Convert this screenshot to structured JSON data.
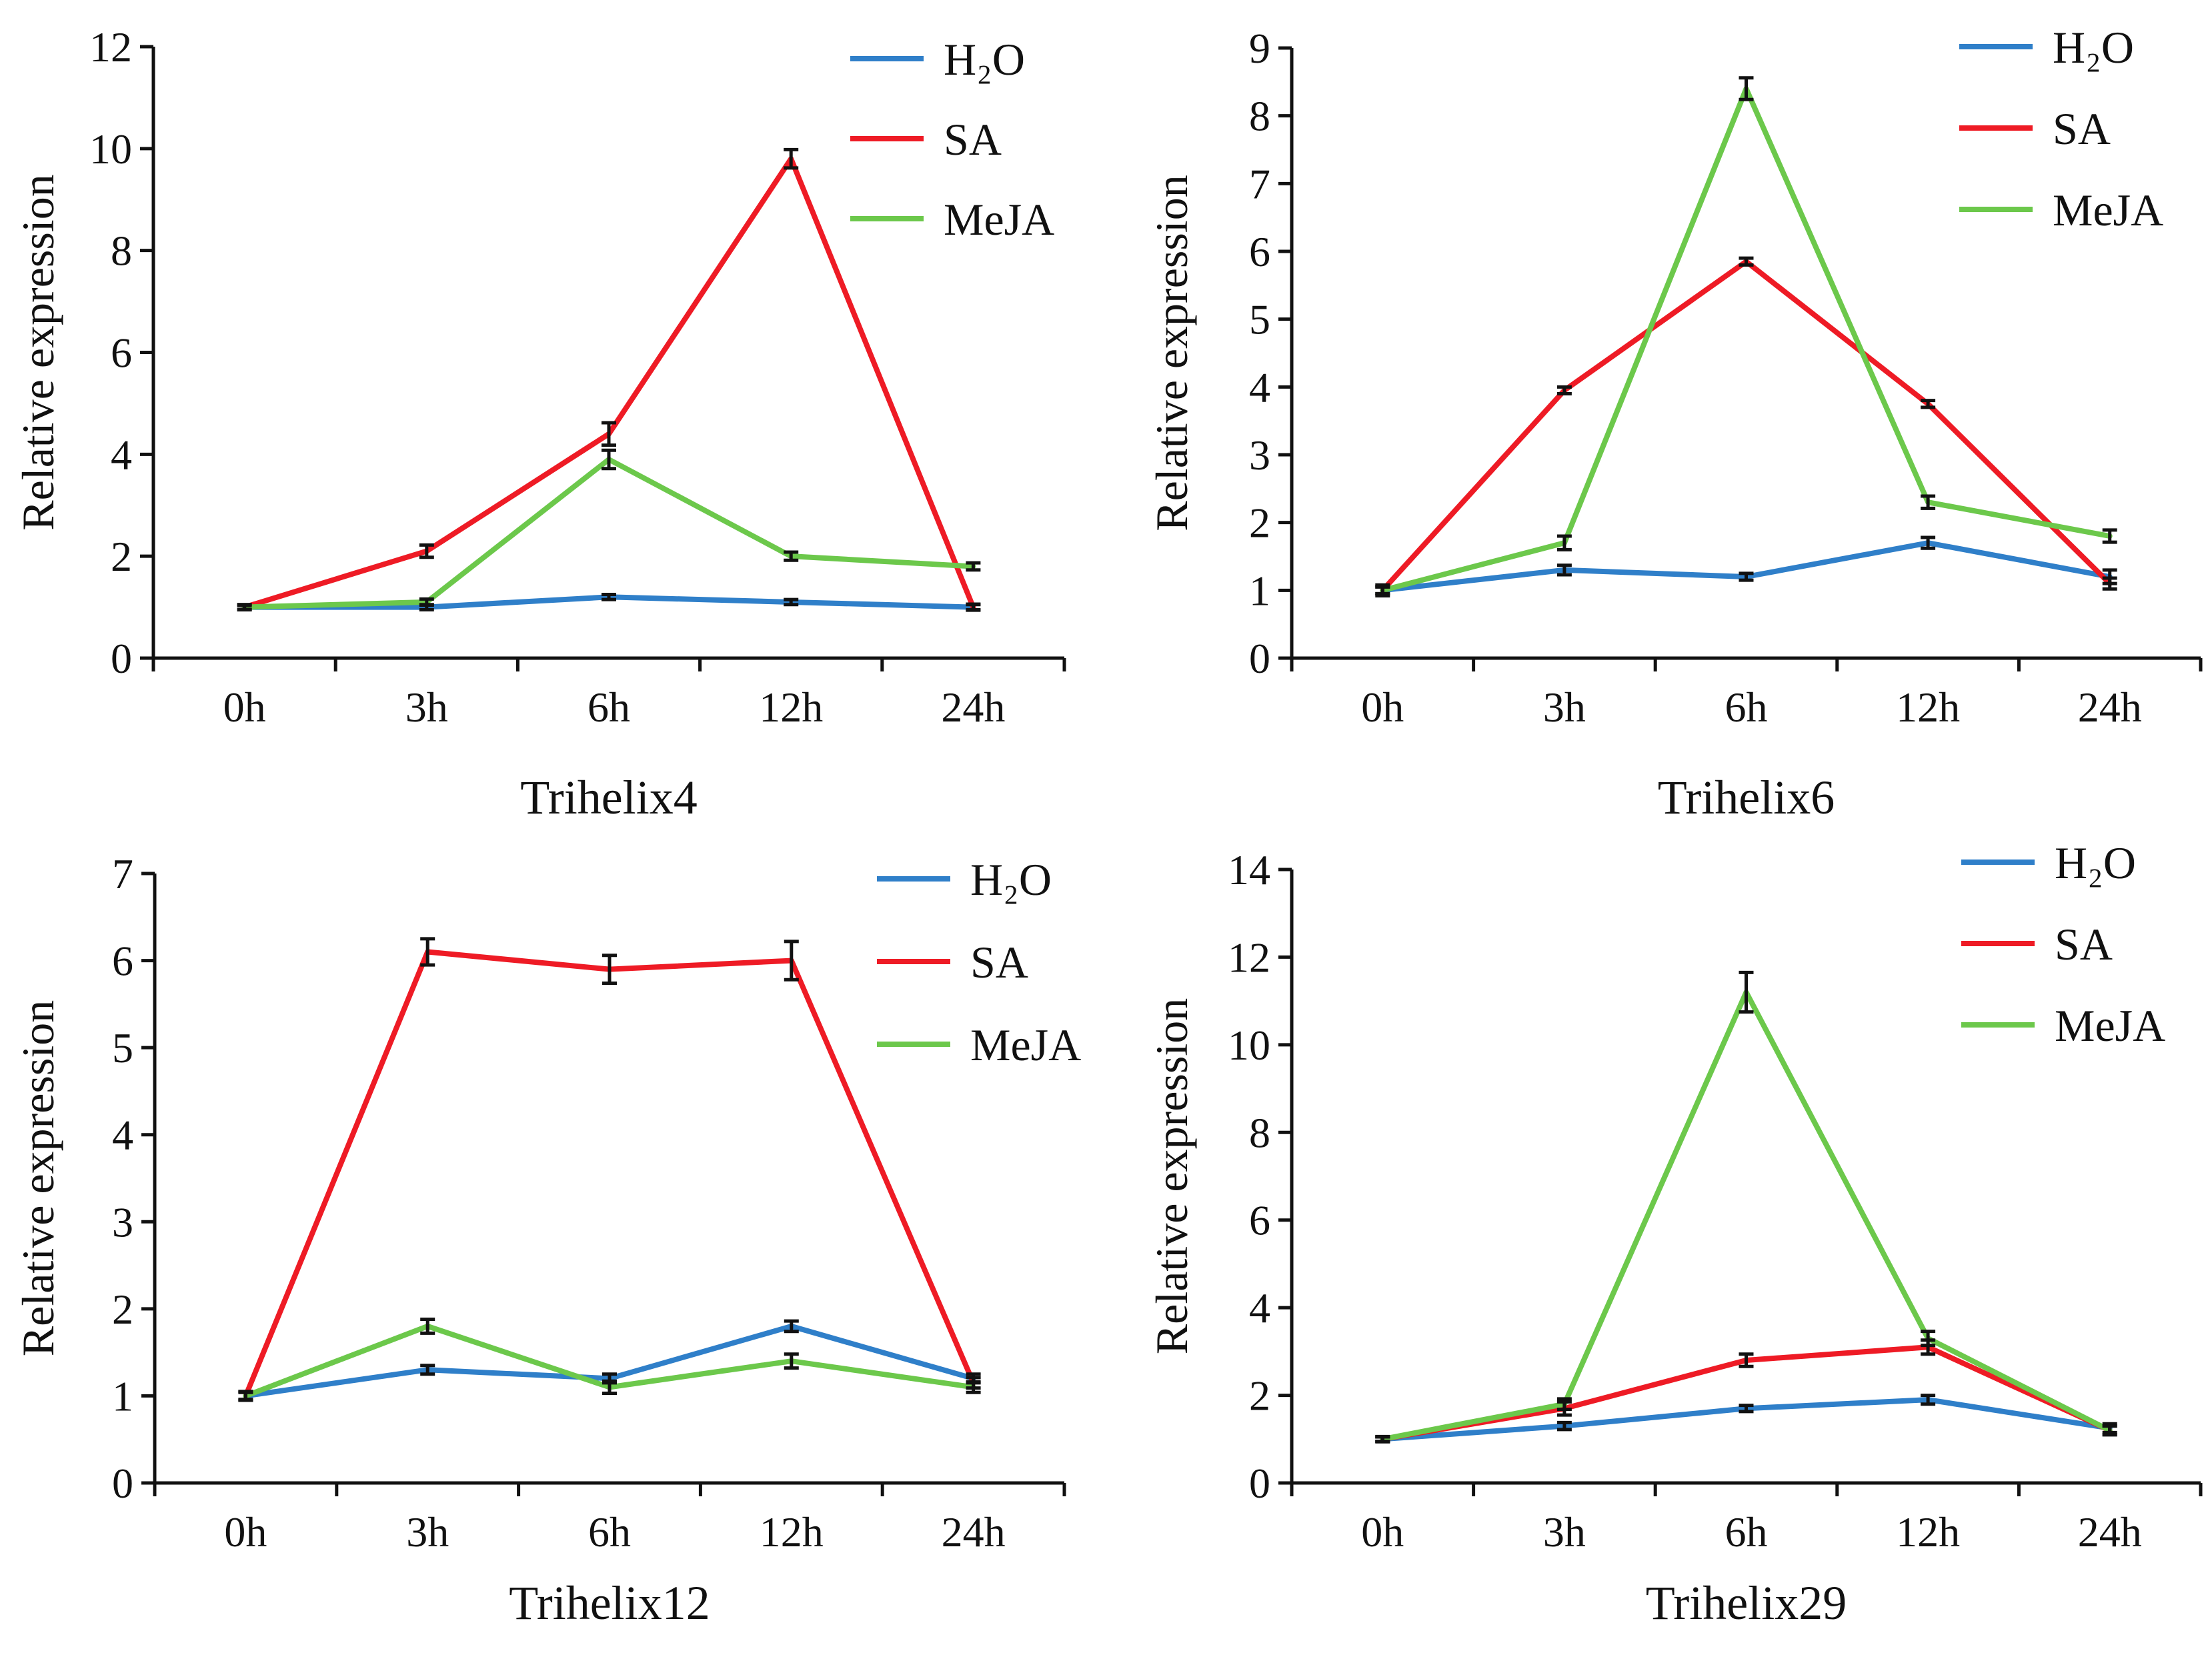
{
  "chart_data": [
    {
      "type": "line",
      "title": "Trihelix4",
      "xlabel": "Trihelix4",
      "ylabel": "Relative expression",
      "categories": [
        "0h",
        "3h",
        "6h",
        "12h",
        "24h"
      ],
      "ylim": [
        0,
        12
      ],
      "yticks": [
        0,
        2,
        4,
        6,
        8,
        10,
        12
      ],
      "legend_position": "top-right",
      "series": [
        {
          "name": "H2O",
          "label": "H₂O",
          "color": "#2f7fc9",
          "values": [
            1.0,
            1.0,
            1.2,
            1.1,
            1.0
          ],
          "errors": [
            0.04,
            0.05,
            0.05,
            0.05,
            0.06
          ]
        },
        {
          "name": "SA",
          "label": "SA",
          "color": "#ee1b25",
          "values": [
            1.0,
            2.1,
            4.4,
            9.8,
            1.0
          ],
          "errors": [
            0.05,
            0.12,
            0.22,
            0.18,
            0.05
          ]
        },
        {
          "name": "MeJA",
          "label": "MeJA",
          "color": "#6cc84b",
          "values": [
            1.0,
            1.1,
            3.9,
            2.0,
            1.8
          ],
          "errors": [
            0.05,
            0.06,
            0.18,
            0.08,
            0.07
          ]
        }
      ]
    },
    {
      "type": "line",
      "title": "Trihelix6",
      "xlabel": "Trihelix6",
      "ylabel": "Relative expression",
      "categories": [
        "0h",
        "3h",
        "6h",
        "12h",
        "24h"
      ],
      "ylim": [
        0,
        9
      ],
      "yticks": [
        0,
        1,
        2,
        3,
        4,
        5,
        6,
        7,
        8,
        9
      ],
      "legend_position": "top-right",
      "series": [
        {
          "name": "H2O",
          "label": "H₂O",
          "color": "#2f7fc9",
          "values": [
            1.0,
            1.3,
            1.2,
            1.7,
            1.2
          ],
          "errors": [
            0.08,
            0.07,
            0.05,
            0.08,
            0.1
          ]
        },
        {
          "name": "SA",
          "label": "SA",
          "color": "#ee1b25",
          "values": [
            1.0,
            3.95,
            5.85,
            3.75,
            1.1
          ],
          "errors": [
            0.05,
            0.05,
            0.05,
            0.05,
            0.08
          ]
        },
        {
          "name": "MeJA",
          "label": "MeJA",
          "color": "#6cc84b",
          "values": [
            1.0,
            1.7,
            8.4,
            2.3,
            1.8
          ],
          "errors": [
            0.05,
            0.1,
            0.16,
            0.09,
            0.09
          ]
        }
      ]
    },
    {
      "type": "line",
      "title": "Trihelix12",
      "xlabel": "Trihelix12",
      "ylabel": "Relative expression",
      "categories": [
        "0h",
        "3h",
        "6h",
        "12h",
        "24h"
      ],
      "ylim": [
        0,
        7
      ],
      "yticks": [
        0,
        1,
        2,
        3,
        4,
        5,
        6,
        7
      ],
      "legend_position": "top-right",
      "series": [
        {
          "name": "H2O",
          "label": "H₂O",
          "color": "#2f7fc9",
          "values": [
            1.0,
            1.3,
            1.2,
            1.8,
            1.2
          ],
          "errors": [
            0.04,
            0.05,
            0.05,
            0.06,
            0.05
          ]
        },
        {
          "name": "SA",
          "label": "SA",
          "color": "#ee1b25",
          "values": [
            1.0,
            6.1,
            5.9,
            6.0,
            1.15
          ],
          "errors": [
            0.05,
            0.15,
            0.16,
            0.22,
            0.06
          ]
        },
        {
          "name": "MeJA",
          "label": "MeJA",
          "color": "#6cc84b",
          "values": [
            1.0,
            1.8,
            1.1,
            1.4,
            1.1
          ],
          "errors": [
            0.05,
            0.08,
            0.07,
            0.08,
            0.06
          ]
        }
      ]
    },
    {
      "type": "line",
      "title": "Trihelix29",
      "xlabel": "Trihelix29",
      "ylabel": "Relative expression",
      "categories": [
        "0h",
        "3h",
        "6h",
        "12h",
        "24h"
      ],
      "ylim": [
        0,
        14
      ],
      "yticks": [
        0,
        2,
        4,
        6,
        8,
        10,
        12,
        14
      ],
      "legend_position": "top-right",
      "series": [
        {
          "name": "H2O",
          "label": "H₂O",
          "color": "#2f7fc9",
          "values": [
            1.0,
            1.3,
            1.7,
            1.9,
            1.25
          ],
          "errors": [
            0.06,
            0.08,
            0.07,
            0.1,
            0.1
          ]
        },
        {
          "name": "SA",
          "label": "SA",
          "color": "#ee1b25",
          "values": [
            1.0,
            1.7,
            2.8,
            3.1,
            1.2
          ],
          "errors": [
            0.05,
            0.15,
            0.14,
            0.16,
            0.1
          ]
        },
        {
          "name": "MeJA",
          "label": "MeJA",
          "color": "#6cc84b",
          "values": [
            1.0,
            1.8,
            11.2,
            3.3,
            1.2
          ],
          "errors": [
            0.05,
            0.12,
            0.45,
            0.16,
            0.1
          ]
        }
      ]
    }
  ]
}
